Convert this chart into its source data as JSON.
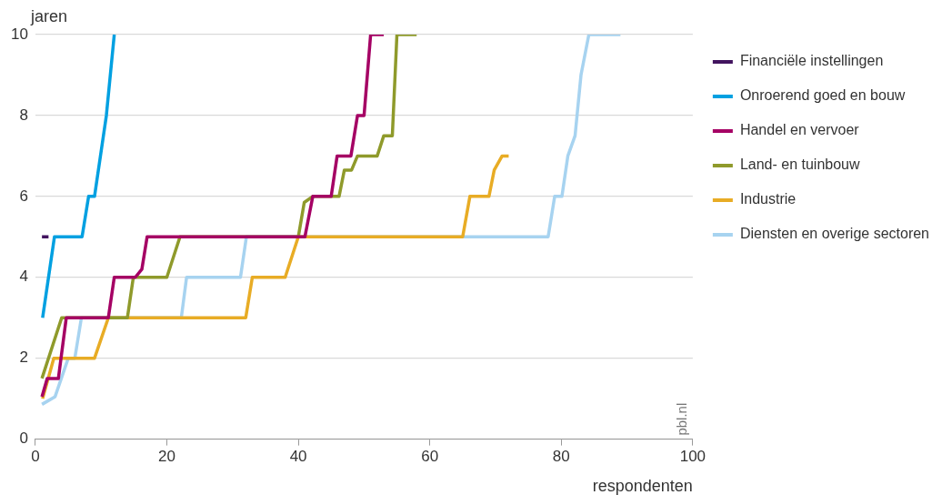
{
  "chart_data": {
    "type": "line",
    "xlabel": "respondenten",
    "ylabel": "jaren",
    "xlim": [
      0,
      100
    ],
    "xticks": [
      0,
      20,
      40,
      60,
      80,
      100
    ],
    "ylim": [
      0,
      10
    ],
    "yticks": [
      0,
      2,
      4,
      6,
      8,
      10
    ],
    "grid": "y",
    "legend": "right",
    "marker": "none",
    "line_style": "solid",
    "annotations": [
      "pbl.nl"
    ],
    "series": [
      {
        "name": "Financiële instellingen",
        "color": "#42145f",
        "x": [
          1,
          2
        ],
        "values": [
          5,
          5
        ]
      },
      {
        "name": "Onroerend goed en bouw",
        "color": "#00a0e1",
        "x": [
          1.1,
          2.9,
          7.1,
          8.1,
          9,
          10.8,
          12
        ],
        "values": [
          3,
          5,
          5,
          6,
          6,
          8,
          10
        ]
      },
      {
        "name": "Handel en vervoer",
        "color": "#a50064",
        "x": [
          1,
          1.8,
          3.5,
          4.7,
          11.1,
          12,
          15.2,
          16.2,
          17,
          21.6,
          41,
          42.2,
          45,
          45.9,
          48,
          49,
          50,
          51,
          53
        ],
        "values": [
          1.05,
          1.5,
          1.5,
          3,
          3,
          4,
          4,
          4.2,
          5,
          5,
          5,
          6,
          6,
          7,
          7,
          8,
          8,
          10,
          10
        ]
      },
      {
        "name": "Land- en tuinbouw",
        "color": "#8f9a2b",
        "x": [
          1,
          4,
          6.8,
          14,
          14.9,
          20,
          22,
          31.8,
          40,
          40.9,
          42.2,
          46.2,
          47,
          48.1,
          49,
          52,
          53,
          54.3,
          55,
          58
        ],
        "values": [
          1.5,
          3,
          3,
          3,
          4,
          4,
          5,
          5,
          5,
          5.85,
          6,
          6,
          6.65,
          6.65,
          7,
          7,
          7.5,
          7.5,
          10,
          10
        ]
      },
      {
        "name": "Industrie",
        "color": "#e8ac25",
        "x": [
          1.1,
          2.8,
          9,
          11.1,
          22.2,
          32,
          33,
          38,
          40,
          65,
          66.1,
          69,
          69.8,
          71,
          72
        ],
        "values": [
          1,
          2,
          2,
          3,
          3,
          3,
          4,
          4,
          5,
          5,
          6,
          6,
          6.65,
          7,
          7
        ]
      },
      {
        "name": "Diensten en overige sectoren",
        "color": "#a7d3f0",
        "x": [
          1,
          3,
          5,
          6,
          7,
          22.2,
          23,
          31.2,
          32.1,
          78,
          79,
          80.1,
          81,
          82.1,
          83,
          84.2,
          89
        ],
        "values": [
          0.86,
          1.05,
          2,
          2,
          3,
          3,
          4,
          4,
          5,
          5,
          6,
          6,
          7,
          7.5,
          9,
          10,
          10
        ]
      }
    ]
  }
}
